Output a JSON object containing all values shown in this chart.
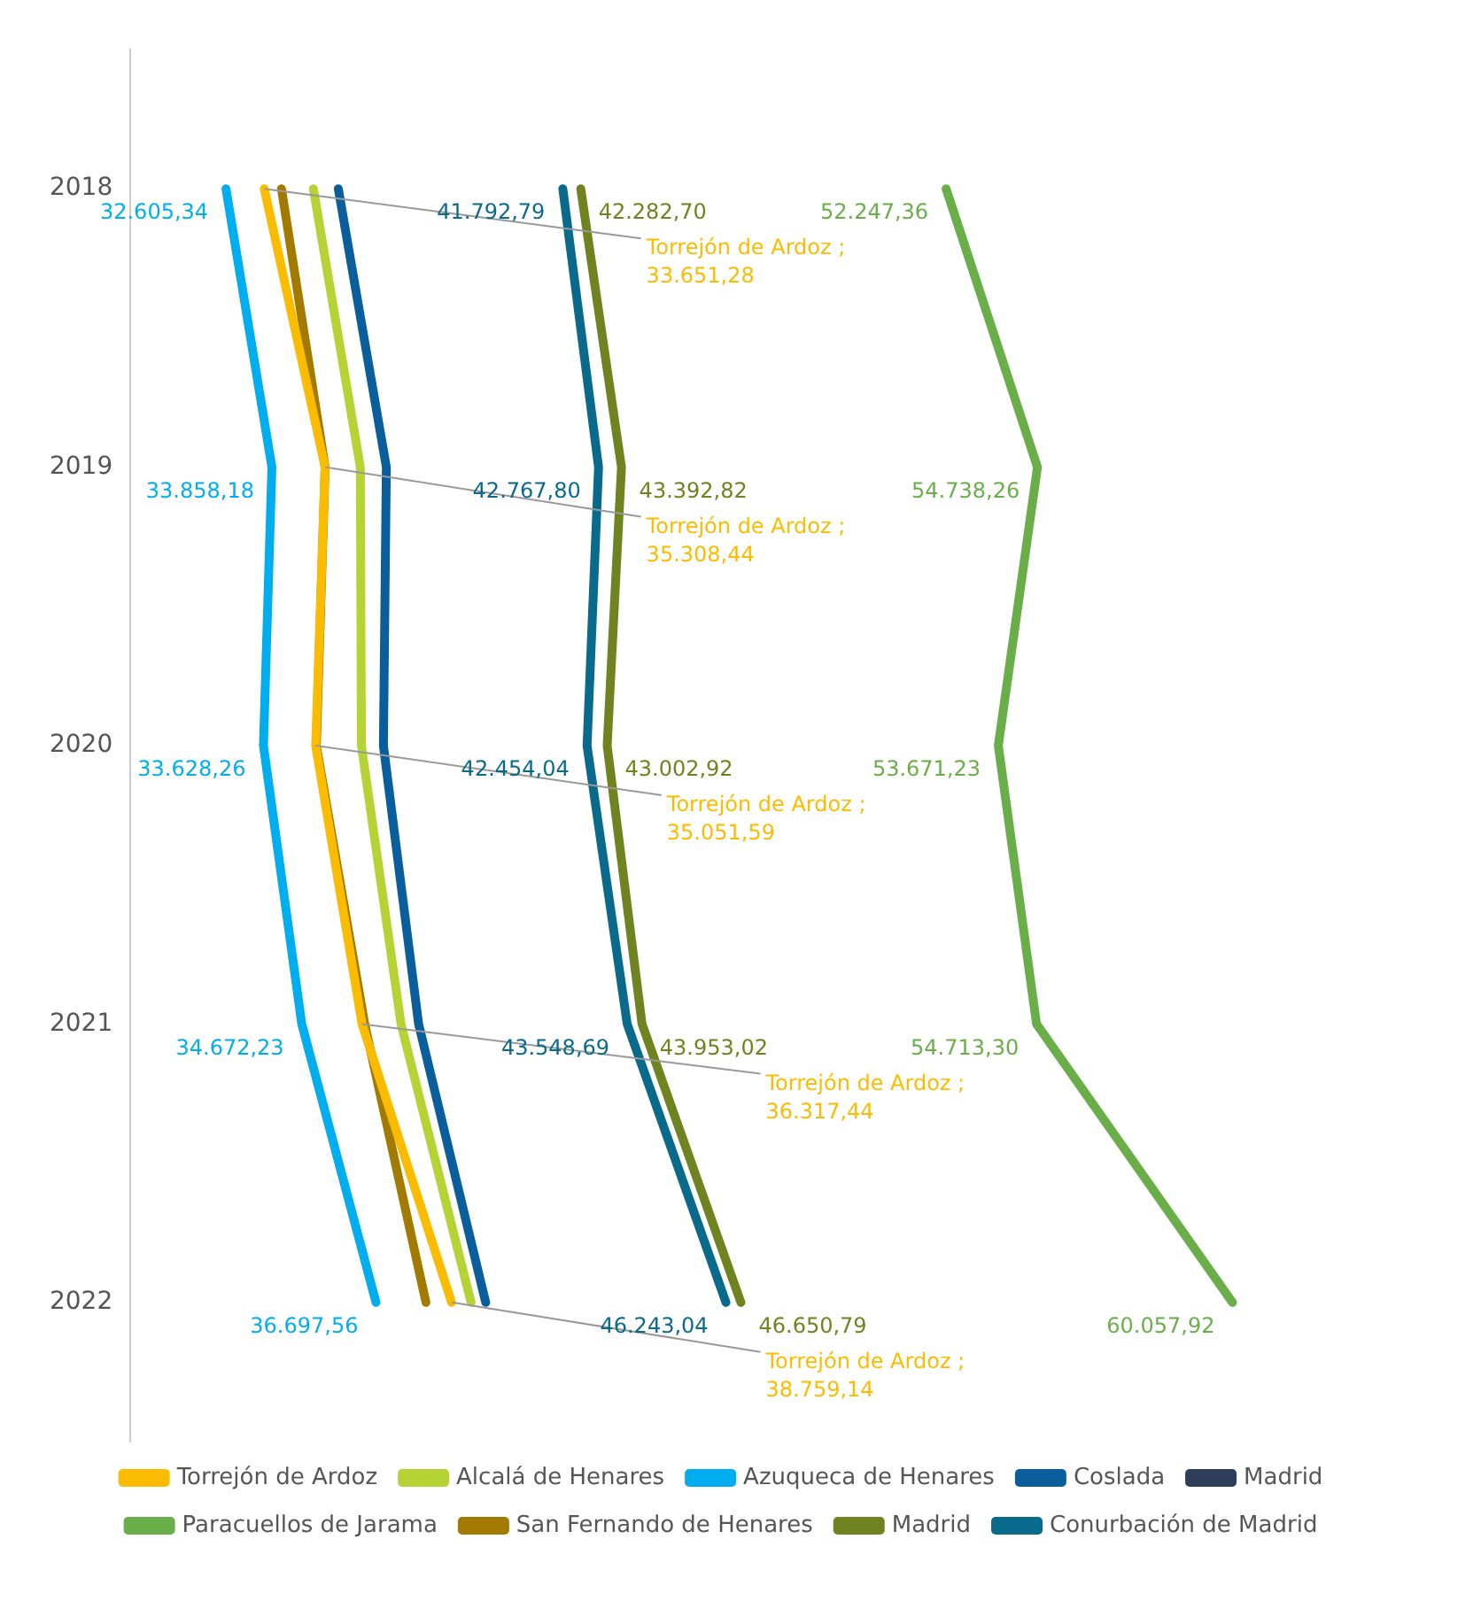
{
  "chart_data": {
    "type": "line",
    "orientation": "horizontal",
    "categories": [
      "2018",
      "2019",
      "2020",
      "2021",
      "2022"
    ],
    "tick_labels": "x",
    "legend": "bottom",
    "marker": "none",
    "line_style": "solid",
    "series": [
      {
        "name": "Torrejón de Ardoz",
        "color": "#fbbb00",
        "values": [
          33651.28,
          35308.44,
          35051.59,
          36317.44,
          38759.14
        ],
        "value_labels": [
          "Torrejón de Ardoz ; 33.651,28",
          "Torrejón de Ardoz ; 35.308,44",
          "Torrejón de Ardoz ; 35.051,59",
          "Torrejón de Ardoz ; 36.317,44",
          "Torrejón de Ardoz ; 38.759,14"
        ]
      },
      {
        "name": "Alcalá de Henares",
        "color": "#b5d334",
        "values": [
          34990,
          36270,
          36300,
          37380,
          39290
        ]
      },
      {
        "name": "Azuqueca de Henares",
        "color": "#00aeef",
        "values": [
          32605.34,
          33858.18,
          33628.26,
          34672.23,
          36697.56
        ],
        "value_labels": [
          "32.605,34",
          "33.858,18",
          "33.628,26",
          "34.672,23",
          "36.697,56"
        ]
      },
      {
        "name": "Coslada",
        "color": "#0a5e9c",
        "values": [
          35670,
          36980,
          36900,
          37860,
          39690
        ]
      },
      {
        "name": "Madrid",
        "color": "#2e3d5a",
        "values": [
          null,
          null,
          null,
          null,
          null
        ]
      },
      {
        "name": "Paracuellos de Jarama",
        "color": "#6aae4a",
        "values": [
          52247.36,
          54738.26,
          53671.23,
          54713.3,
          60057.92
        ],
        "value_labels": [
          "52.247,36",
          "54.738,26",
          "53.671,23",
          "54.713,30",
          "60.057,92"
        ]
      },
      {
        "name": "San Fernando de Henares",
        "color": "#a27a00",
        "values": [
          34120,
          35310,
          35070,
          36390,
          38060
        ]
      },
      {
        "name": "Madrid",
        "color": "#6f8420",
        "values": [
          42282.7,
          43392.82,
          43002.92,
          43953.02,
          46650.79
        ],
        "value_labels": [
          "42.282,70",
          "43.392,82",
          "43.002,92",
          "43.953,02",
          "46.650,79"
        ]
      },
      {
        "name": "Conurbación de Madrid",
        "color": "#0a6a8c",
        "values": [
          41792.79,
          42767.8,
          42454.04,
          43548.69,
          46243.04
        ],
        "value_labels": [
          "41.792,79",
          "42.767,80",
          "42.454,04",
          "43.548,69",
          "46.243,04"
        ]
      }
    ]
  }
}
